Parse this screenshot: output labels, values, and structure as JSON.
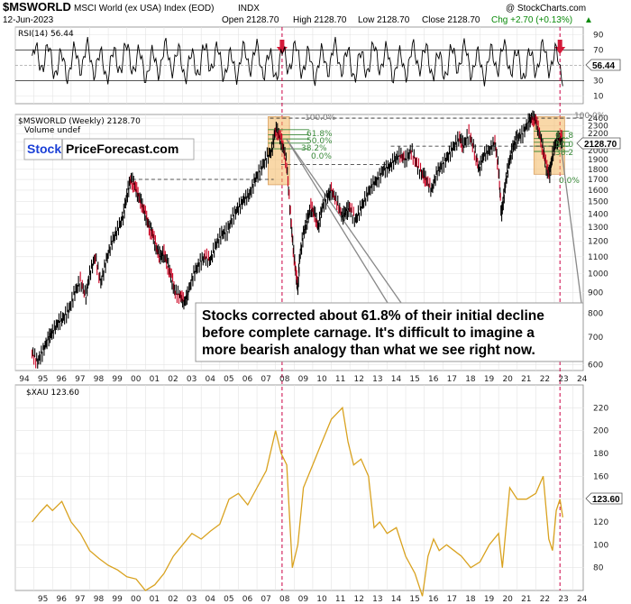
{
  "header": {
    "symbol": "$MSWORLD",
    "name": "MSCI World (ex USA) Index (EOD)",
    "exchange": "INDX",
    "date": "12-Jun-2023",
    "open": "Open 2128.70",
    "high": "High 2128.70",
    "low": "Low 2128.70",
    "close": "Close 2128.70",
    "chg": "Chg +2.70 (+0.13%)",
    "watermark": "@ StockCharts.com",
    "up_arrow": "▲"
  },
  "logo": {
    "part1": "Stock",
    "part2": "PriceForecast.com"
  },
  "annotation": {
    "lines": [
      "Stocks corrected about 61.8% of their initial decline",
      "before complete carnage. It's difficult to imagine a",
      "more bearish analogy than what we see right now."
    ]
  },
  "fib_labels": {
    "p100": "100.0%",
    "p618": "61.8%",
    "p50": "50.0%",
    "p382": "38.2%",
    "p0": "0.0%",
    "r100": "100.0%",
    "r618": "61.8",
    "r50": "50.0",
    "r382": "38.2",
    "r0": "0.0%"
  },
  "colors": {
    "price": "#000000",
    "down_bar": "#cc0022",
    "gold": "#d9a21f",
    "fib_green": "#3a8a3a",
    "box_fill": "#f4b860",
    "arrow_red": "#d41b3a",
    "vline": "#cc0044"
  },
  "chart_data": [
    {
      "type": "line",
      "title": "RSI(14) 56.44",
      "y_ticks": [
        10,
        30,
        50,
        70,
        90
      ],
      "ylim": [
        0,
        100
      ],
      "last_value": "56.44",
      "reference_lines": [
        30,
        70
      ]
    },
    {
      "type": "bar",
      "title": "$MSWORLD (Weekly) 2128.70",
      "legend": [
        "$MSWORLD (Weekly) 2128.70",
        "Volume undef"
      ],
      "scale": "log",
      "ylim": [
        580,
        2450
      ],
      "y_ticks": [
        "600",
        "700",
        "800",
        "900",
        "1000",
        "1100",
        "1200",
        "1300",
        "1400",
        "1500",
        "1600",
        "1700",
        "1800",
        "1900",
        "2000",
        "2100",
        "2200",
        "2300",
        "2400"
      ],
      "last_value": "2128.70",
      "x_ticks": [
        "94",
        "95",
        "96",
        "97",
        "98",
        "99",
        "00",
        "01",
        "02",
        "03",
        "04",
        "05",
        "06",
        "07",
        "08",
        "09",
        "10",
        "11",
        "12",
        "13",
        "14",
        "15",
        "16",
        "17",
        "18",
        "19",
        "20",
        "21",
        "22",
        "23",
        "24"
      ],
      "x": [
        1994.9,
        1995.2,
        1995.5,
        1995.8,
        1996.0,
        1996.3,
        1996.6,
        1996.9,
        1997.2,
        1997.5,
        1997.8,
        1998.0,
        1998.3,
        1998.6,
        1998.9,
        1999.2,
        1999.5,
        1999.8,
        2000.0,
        2000.2,
        2000.4,
        2000.6,
        2000.8,
        2001.0,
        2001.2,
        2001.4,
        2001.6,
        2001.8,
        2002.0,
        2002.2,
        2002.4,
        2002.6,
        2002.9,
        2003.1,
        2003.3,
        2003.6,
        2003.9,
        2004.2,
        2004.5,
        2004.8,
        2005.1,
        2005.4,
        2005.7,
        2006.0,
        2006.3,
        2006.6,
        2006.9,
        2007.2,
        2007.5,
        2007.8,
        2008.0,
        2008.2,
        2008.4,
        2008.6,
        2008.8,
        2008.95,
        2009.1,
        2009.2,
        2009.3,
        2009.5,
        2009.7,
        2009.9,
        2010.1,
        2010.3,
        2010.5,
        2010.8,
        2011.0,
        2011.3,
        2011.6,
        2011.8,
        2012.0,
        2012.3,
        2012.6,
        2012.9,
        2013.2,
        2013.5,
        2013.8,
        2014.1,
        2014.4,
        2014.7,
        2015.0,
        2015.3,
        2015.6,
        2015.9,
        2016.1,
        2016.4,
        2016.7,
        2017.0,
        2017.3,
        2017.6,
        2017.9,
        2018.1,
        2018.4,
        2018.7,
        2018.95,
        2019.2,
        2019.5,
        2019.8,
        2020.0,
        2020.15,
        2020.25,
        2020.4,
        2020.6,
        2020.8,
        2021.0,
        2021.3,
        2021.6,
        2021.8,
        2022.0,
        2022.2,
        2022.4,
        2022.6,
        2022.75,
        2022.9,
        2023.1,
        2023.3,
        2023.45
      ],
      "values": [
        640,
        610,
        650,
        700,
        720,
        760,
        780,
        820,
        900,
        960,
        880,
        1000,
        1100,
        950,
        1080,
        1200,
        1280,
        1380,
        1550,
        1700,
        1650,
        1560,
        1480,
        1400,
        1300,
        1250,
        1150,
        1100,
        1120,
        1050,
        980,
        900,
        880,
        850,
        900,
        1000,
        1060,
        1100,
        1080,
        1180,
        1250,
        1270,
        1380,
        1450,
        1520,
        1560,
        1700,
        1800,
        1920,
        2000,
        2250,
        2180,
        2050,
        1850,
        1400,
        1150,
        1000,
        920,
        1100,
        1250,
        1350,
        1450,
        1400,
        1300,
        1450,
        1550,
        1600,
        1500,
        1380,
        1420,
        1450,
        1350,
        1450,
        1550,
        1650,
        1700,
        1800,
        1820,
        1900,
        1950,
        1900,
        2000,
        1850,
        1750,
        1700,
        1600,
        1780,
        1850,
        1950,
        2050,
        2150,
        2050,
        2200,
        2000,
        1800,
        1950,
        2000,
        2100,
        1800,
        1400,
        1500,
        1700,
        1900,
        2050,
        2150,
        2200,
        2350,
        2400,
        2380,
        2200,
        2000,
        1800,
        1750,
        1950,
        2100,
        2150,
        2128
      ]
    },
    {
      "type": "line",
      "title": "$XAU 123.60",
      "ylim": [
        60,
        240
      ],
      "y_ticks": [
        "80",
        "100",
        "120",
        "140",
        "160",
        "180",
        "200",
        "220"
      ],
      "last_value": "123.60",
      "x_ticks": [
        "95",
        "96",
        "97",
        "98",
        "99",
        "00",
        "01",
        "02",
        "03",
        "04",
        "05",
        "06",
        "07",
        "08",
        "09",
        "10",
        "11",
        "12",
        "13",
        "14",
        "15",
        "16",
        "17",
        "18",
        "19",
        "20",
        "21",
        "22",
        "23",
        "24"
      ],
      "x": [
        1994.9,
        1995.3,
        1995.7,
        1996.0,
        1996.5,
        1997.0,
        1997.5,
        1998.0,
        1998.5,
        1999.0,
        1999.5,
        2000.0,
        2000.5,
        2001.0,
        2001.5,
        2002.0,
        2002.5,
        2003.0,
        2003.5,
        2004.0,
        2004.5,
        2005.0,
        2005.5,
        2006.0,
        2006.5,
        2007.0,
        2007.5,
        2008.0,
        2008.3,
        2008.6,
        2008.9,
        2009.2,
        2009.5,
        2010.0,
        2010.5,
        2011.0,
        2011.3,
        2011.6,
        2011.9,
        2012.2,
        2012.6,
        2013.0,
        2013.3,
        2013.6,
        2014.0,
        2014.5,
        2015.0,
        2015.5,
        2015.9,
        2016.2,
        2016.5,
        2016.8,
        2017.2,
        2017.6,
        2018.0,
        2018.5,
        2019.0,
        2019.5,
        2020.0,
        2020.2,
        2020.6,
        2021.0,
        2021.5,
        2022.0,
        2022.4,
        2022.7,
        2022.9,
        2023.1,
        2023.3,
        2023.45
      ],
      "values": [
        120,
        128,
        135,
        130,
        138,
        120,
        110,
        95,
        88,
        82,
        78,
        72,
        70,
        60,
        65,
        75,
        90,
        100,
        110,
        105,
        112,
        118,
        140,
        145,
        135,
        150,
        165,
        200,
        180,
        170,
        80,
        100,
        150,
        170,
        190,
        210,
        215,
        220,
        190,
        170,
        175,
        160,
        115,
        120,
        110,
        115,
        90,
        75,
        55,
        90,
        105,
        95,
        100,
        95,
        90,
        80,
        85,
        100,
        110,
        80,
        150,
        140,
        140,
        145,
        160,
        105,
        95,
        130,
        140,
        124
      ]
    }
  ]
}
